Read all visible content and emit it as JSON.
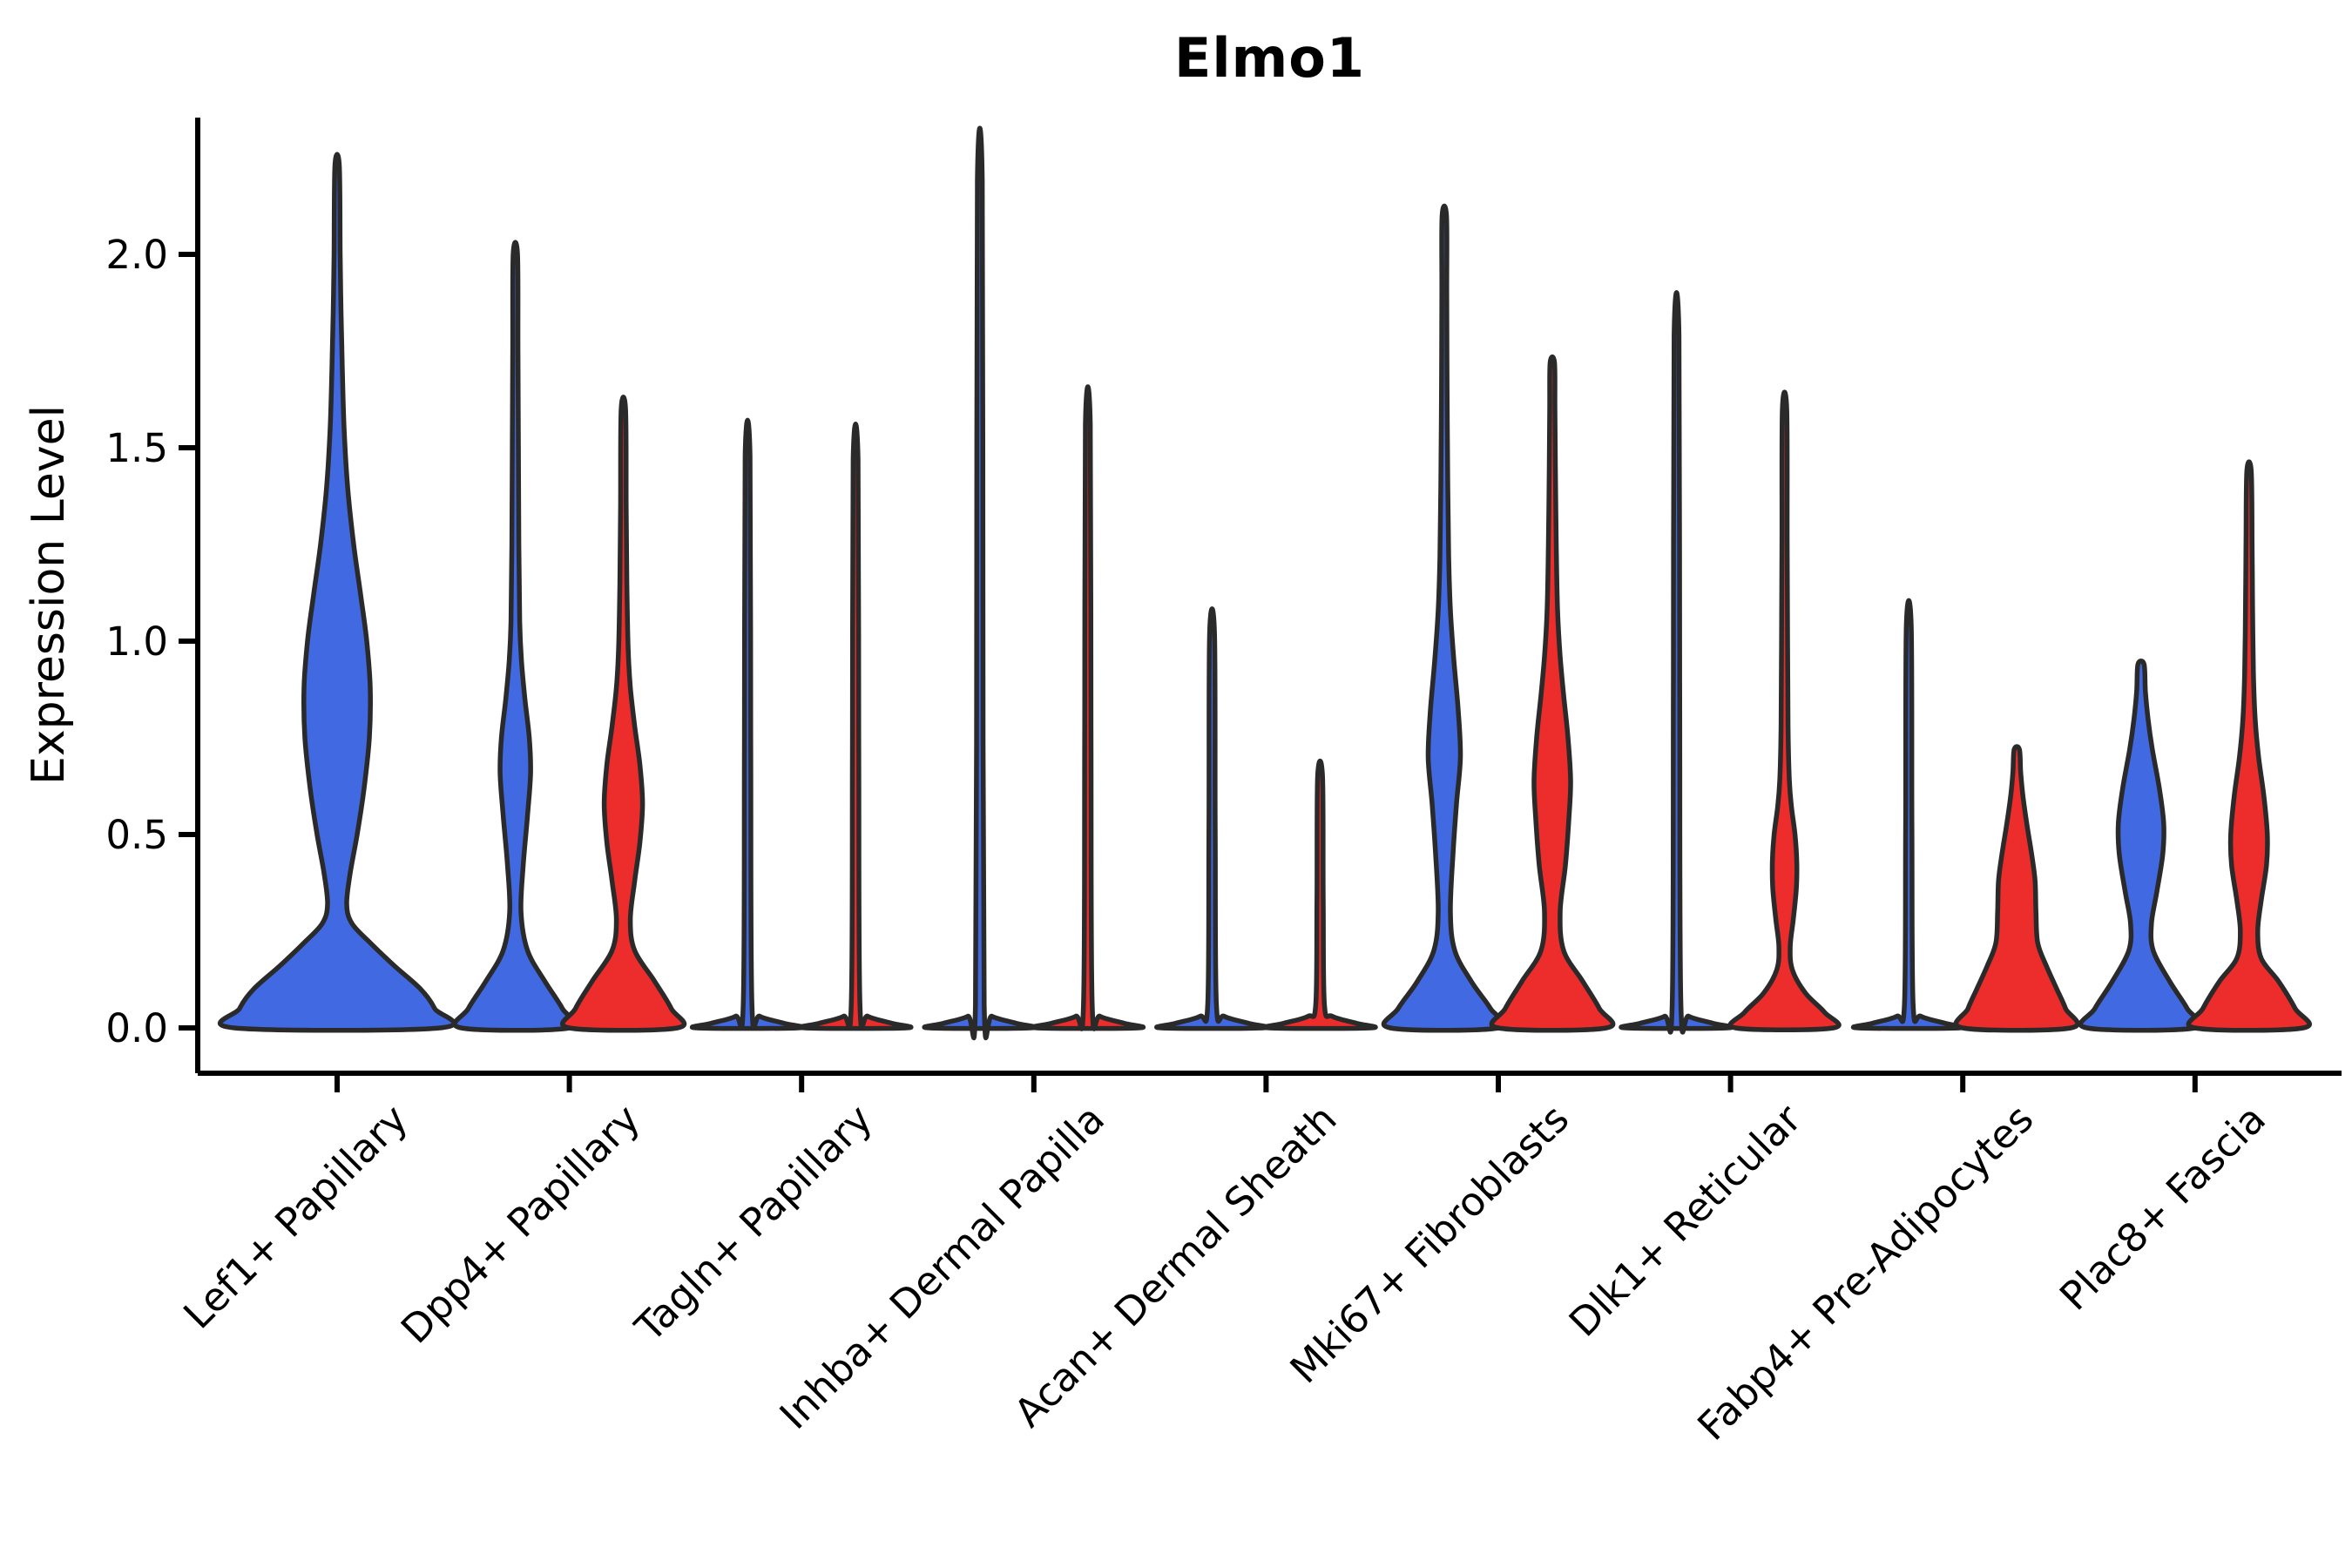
{
  "title": "Elmo1",
  "y_axis": {
    "label": "Expression Level",
    "tick_labels": [
      "0.0",
      "0.5",
      "1.0",
      "1.5",
      "2.0"
    ]
  },
  "x_axis": {
    "categories": [
      "Lef1+ Papillary",
      "Dpp4+ Papillary",
      "Tagln+ Papillary",
      "Inhba+ Dermal Papilla",
      "Acan+ Dermal Sheath",
      "Mki67+ Fibroblasts",
      "Dlk1+ Reticular",
      "Fabp4+ Pre-Adipocytes",
      "Plac8+ Fascia"
    ],
    "rotation_deg": 45
  },
  "colors": {
    "violin_blue": "#4169E1",
    "violin_red": "#ED2C2C",
    "outline": "#2A2A2A",
    "axis": "#000000",
    "background": "#FFFFFF"
  },
  "chart_data": {
    "type": "violin",
    "title": "Elmo1",
    "xlabel": "",
    "ylabel": "Expression Level",
    "ylim": [
      -0.12,
      2.35
    ],
    "yticks": [
      0,
      0.5,
      1.0,
      1.5,
      2.0
    ],
    "ytick_labels": [
      "0.0",
      "0.5",
      "1.0",
      "1.5",
      "2.0"
    ],
    "grid": false,
    "legend": "none",
    "split_colors": {
      "blue": "#4169E1",
      "red": "#ED2C2C"
    },
    "categories": [
      "Lef1+ Papillary",
      "Dpp4+ Papillary",
      "Tagln+ Papillary",
      "Inhba+ Dermal Papilla",
      "Acan+ Dermal Sheath",
      "Mki67+ Fibroblasts",
      "Dlk1+ Reticular",
      "Fabp4+ Pre-Adipocytes",
      "Plac8+ Fascia"
    ],
    "groups": [
      {
        "category": "Lef1+ Papillary",
        "violins": [
          {
            "split": "blue",
            "side": "center",
            "max_expression": 2.23,
            "profile": [
              [
                0,
                118
              ],
              [
                0.05,
                112
              ],
              [
                0.1,
                96
              ],
              [
                0.16,
                66
              ],
              [
                0.22,
                38
              ],
              [
                0.27,
                17
              ],
              [
                0.32,
                11
              ],
              [
                0.4,
                15
              ],
              [
                0.5,
                23
              ],
              [
                0.62,
                31
              ],
              [
                0.75,
                37
              ],
              [
                0.88,
                38
              ],
              [
                1.0,
                34
              ],
              [
                1.12,
                27
              ],
              [
                1.25,
                19
              ],
              [
                1.4,
                12
              ],
              [
                1.55,
                8
              ],
              [
                1.7,
                6
              ],
              [
                1.85,
                4.5
              ],
              [
                2.0,
                3.5
              ],
              [
                2.23,
                2.5
              ]
            ]
          }
        ]
      },
      {
        "category": "Dpp4+ Papillary",
        "violins": [
          {
            "split": "blue",
            "side": "left",
            "max_expression": 2.0,
            "profile": [
              [
                0,
                62
              ],
              [
                0.05,
                54
              ],
              [
                0.12,
                34
              ],
              [
                0.2,
                14
              ],
              [
                0.3,
                6.5
              ],
              [
                0.42,
                9
              ],
              [
                0.55,
                14
              ],
              [
                0.66,
                17.5
              ],
              [
                0.75,
                16
              ],
              [
                0.85,
                11
              ],
              [
                0.95,
                7
              ],
              [
                1.05,
                5
              ],
              [
                1.25,
                4
              ],
              [
                1.5,
                3.5
              ],
              [
                1.75,
                3
              ],
              [
                2.0,
                2.5
              ]
            ]
          },
          {
            "split": "red",
            "side": "right",
            "max_expression": 1.6,
            "profile": [
              [
                0,
                62
              ],
              [
                0.05,
                55
              ],
              [
                0.12,
                36
              ],
              [
                0.2,
                13
              ],
              [
                0.28,
                8
              ],
              [
                0.38,
                13
              ],
              [
                0.48,
                19
              ],
              [
                0.58,
                22
              ],
              [
                0.68,
                19
              ],
              [
                0.78,
                13
              ],
              [
                0.88,
                8
              ],
              [
                0.98,
                5.5
              ],
              [
                1.15,
                4
              ],
              [
                1.35,
                3.2
              ],
              [
                1.6,
                2.5
              ]
            ]
          }
        ]
      },
      {
        "category": "Tagln+ Papillary",
        "violins": [
          {
            "split": "blue",
            "side": "left",
            "max_expression": 1.48,
            "profile": [
              [
                0,
                58
              ],
              [
                0.012,
                42
              ],
              [
                0.03,
                14
              ],
              [
                0.06,
                5
              ],
              [
                0.75,
                3.6
              ],
              [
                1.48,
                2.8
              ]
            ]
          },
          {
            "split": "red",
            "side": "right",
            "max_expression": 1.47,
            "profile": [
              [
                0,
                58
              ],
              [
                0.012,
                42
              ],
              [
                0.03,
                14
              ],
              [
                0.06,
                5
              ],
              [
                0.74,
                3.6
              ],
              [
                1.47,
                2.8
              ]
            ]
          }
        ]
      },
      {
        "category": "Inhba+ Dermal Papilla",
        "violins": [
          {
            "split": "blue",
            "side": "left",
            "max_expression": 2.19,
            "profile": [
              [
                0,
                58
              ],
              [
                0.012,
                42
              ],
              [
                0.03,
                14
              ],
              [
                0.06,
                5
              ],
              [
                1.1,
                3.6
              ],
              [
                2.19,
                2.8
              ]
            ]
          },
          {
            "split": "red",
            "side": "right",
            "max_expression": 1.56,
            "profile": [
              [
                0,
                58
              ],
              [
                0.012,
                42
              ],
              [
                0.03,
                14
              ],
              [
                0.06,
                5
              ],
              [
                0.78,
                3.6
              ],
              [
                1.56,
                2.8
              ]
            ]
          }
        ]
      },
      {
        "category": "Acan+ Dermal Sheath",
        "violins": [
          {
            "split": "blue",
            "side": "left",
            "max_expression": 1.02,
            "profile": [
              [
                0,
                58
              ],
              [
                0.012,
                42
              ],
              [
                0.03,
                14
              ],
              [
                0.06,
                5
              ],
              [
                0.51,
                3.6
              ],
              [
                1.02,
                2.8
              ]
            ]
          },
          {
            "split": "red",
            "side": "right",
            "max_expression": 0.65,
            "profile": [
              [
                0,
                58
              ],
              [
                0.012,
                42
              ],
              [
                0.03,
                14
              ],
              [
                0.06,
                5
              ],
              [
                0.33,
                3.6
              ],
              [
                0.65,
                2.8
              ]
            ]
          }
        ]
      },
      {
        "category": "Mki67+ Fibroblasts",
        "violins": [
          {
            "split": "blue",
            "side": "left",
            "max_expression": 2.1,
            "profile": [
              [
                0,
                62
              ],
              [
                0.05,
                53
              ],
              [
                0.12,
                31
              ],
              [
                0.2,
                12
              ],
              [
                0.3,
                7
              ],
              [
                0.45,
                10
              ],
              [
                0.58,
                14
              ],
              [
                0.7,
                18.5
              ],
              [
                0.82,
                16
              ],
              [
                0.95,
                11
              ],
              [
                1.08,
                7
              ],
              [
                1.22,
                5
              ],
              [
                1.4,
                4
              ],
              [
                1.65,
                3.2
              ],
              [
                1.9,
                2.8
              ],
              [
                2.1,
                2.5
              ]
            ]
          },
          {
            "split": "red",
            "side": "right",
            "max_expression": 1.72,
            "profile": [
              [
                0,
                62
              ],
              [
                0.05,
                54
              ],
              [
                0.12,
                35
              ],
              [
                0.2,
                13
              ],
              [
                0.3,
                9
              ],
              [
                0.42,
                15
              ],
              [
                0.54,
                19
              ],
              [
                0.64,
                21
              ],
              [
                0.75,
                18
              ],
              [
                0.86,
                13
              ],
              [
                0.96,
                9
              ],
              [
                1.08,
                6
              ],
              [
                1.25,
                4.5
              ],
              [
                1.45,
                3.5
              ],
              [
                1.6,
                3
              ],
              [
                1.72,
                2.5
              ]
            ]
          }
        ]
      },
      {
        "category": "Dlk1+ Reticular",
        "violins": [
          {
            "split": "blue",
            "side": "left",
            "max_expression": 1.79,
            "profile": [
              [
                0,
                58
              ],
              [
                0.012,
                42
              ],
              [
                0.03,
                14
              ],
              [
                0.06,
                5
              ],
              [
                0.9,
                3.6
              ],
              [
                1.79,
                2.8
              ]
            ]
          },
          {
            "split": "red",
            "side": "right",
            "max_expression": 1.6,
            "profile": [
              [
                0,
                56
              ],
              [
                0.04,
                46
              ],
              [
                0.09,
                24
              ],
              [
                0.15,
                9
              ],
              [
                0.21,
                6.5
              ],
              [
                0.28,
                10
              ],
              [
                0.36,
                13.5
              ],
              [
                0.43,
                14
              ],
              [
                0.5,
                12
              ],
              [
                0.57,
                8
              ],
              [
                0.64,
                5.5
              ],
              [
                0.78,
                4
              ],
              [
                0.98,
                3.5
              ],
              [
                1.25,
                3
              ],
              [
                1.6,
                2.5
              ]
            ]
          }
        ]
      },
      {
        "category": "Fabp4+ Pre-Adipocytes",
        "violins": [
          {
            "split": "blue",
            "side": "left",
            "max_expression": 1.04,
            "profile": [
              [
                0,
                58
              ],
              [
                0.012,
                42
              ],
              [
                0.03,
                14
              ],
              [
                0.06,
                5
              ],
              [
                0.52,
                3.6
              ],
              [
                1.04,
                2.8
              ]
            ]
          },
          {
            "split": "red",
            "side": "right",
            "max_expression": 0.72,
            "profile": [
              [
                0,
                62
              ],
              [
                0.05,
                56
              ],
              [
                0.1,
                46
              ],
              [
                0.16,
                34
              ],
              [
                0.22,
                24
              ],
              [
                0.3,
                22
              ],
              [
                0.38,
                21
              ],
              [
                0.45,
                17
              ],
              [
                0.52,
                12
              ],
              [
                0.6,
                7
              ],
              [
                0.66,
                4.5
              ],
              [
                0.72,
                3
              ]
            ]
          }
        ]
      },
      {
        "category": "Plac8+ Fascia",
        "violins": [
          {
            "split": "blue",
            "side": "left",
            "max_expression": 0.94,
            "profile": [
              [
                0,
                62
              ],
              [
                0.05,
                53
              ],
              [
                0.12,
                33
              ],
              [
                0.2,
                14
              ],
              [
                0.27,
                12
              ],
              [
                0.35,
                18
              ],
              [
                0.45,
                25
              ],
              [
                0.53,
                26
              ],
              [
                0.62,
                21
              ],
              [
                0.72,
                13
              ],
              [
                0.8,
                8
              ],
              [
                0.87,
                5
              ],
              [
                0.94,
                3.5
              ]
            ]
          },
          {
            "split": "red",
            "side": "right",
            "max_expression": 1.44,
            "profile": [
              [
                0,
                62
              ],
              [
                0.05,
                53
              ],
              [
                0.12,
                34
              ],
              [
                0.18,
                14
              ],
              [
                0.25,
                10
              ],
              [
                0.33,
                14
              ],
              [
                0.42,
                20
              ],
              [
                0.5,
                21
              ],
              [
                0.6,
                17
              ],
              [
                0.7,
                11
              ],
              [
                0.8,
                7
              ],
              [
                0.92,
                5
              ],
              [
                1.1,
                4
              ],
              [
                1.25,
                3.5
              ],
              [
                1.44,
                2.5
              ]
            ]
          }
        ]
      }
    ]
  }
}
